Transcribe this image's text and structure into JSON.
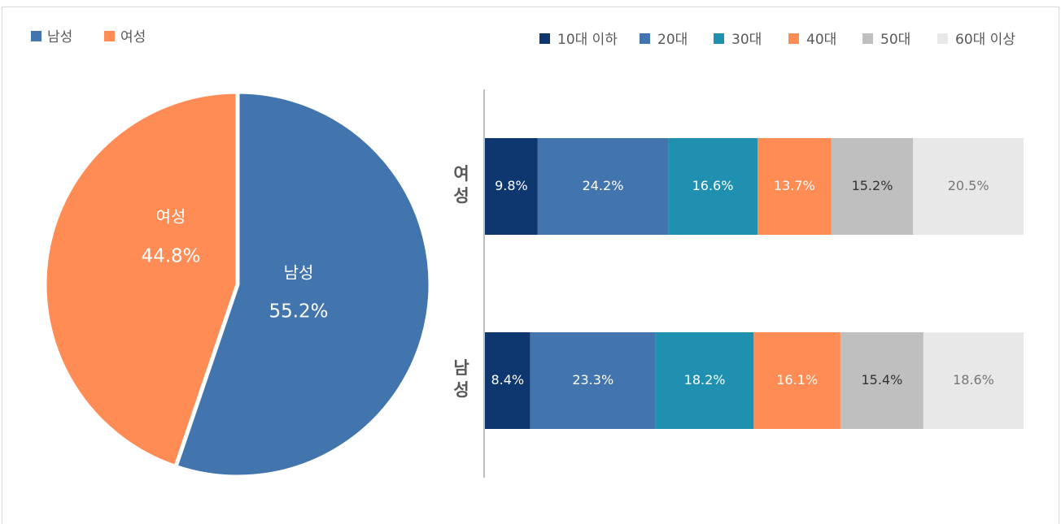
{
  "chart_data": [
    {
      "type": "pie",
      "categories": [
        "남성",
        "여성"
      ],
      "values": [
        55.2,
        44.8
      ],
      "value_labels": [
        "55.2%",
        "44.8%"
      ],
      "colors": [
        "#4274ae",
        "#ff8c55"
      ]
    },
    {
      "type": "stacked_bar_horizontal",
      "categories": [
        "여성",
        "남성"
      ],
      "series": [
        {
          "name": "10대 이하",
          "color": "#0e3770",
          "values": [
            9.8,
            8.4
          ],
          "value_labels": [
            "9.8%",
            "8.4%"
          ]
        },
        {
          "name": "20대",
          "color": "#4274ae",
          "values": [
            24.2,
            23.3
          ],
          "value_labels": [
            "24.2%",
            "23.3%"
          ]
        },
        {
          "name": "30대",
          "color": "#2090b0",
          "values": [
            16.6,
            18.2
          ],
          "value_labels": [
            "16.6%",
            "18.2%"
          ]
        },
        {
          "name": "40대",
          "color": "#ff8c55",
          "values": [
            13.7,
            16.1
          ],
          "value_labels": [
            "13.7%",
            "16.1%"
          ]
        },
        {
          "name": "50대",
          "color": "#bfbfbf",
          "values": [
            15.2,
            15.4
          ],
          "value_labels": [
            "15.2%",
            "15.4%"
          ]
        },
        {
          "name": "60대 이상",
          "color": "#e8e8e8",
          "values": [
            20.5,
            18.6
          ],
          "value_labels": [
            "20.5%",
            "18.6%"
          ]
        }
      ]
    }
  ]
}
